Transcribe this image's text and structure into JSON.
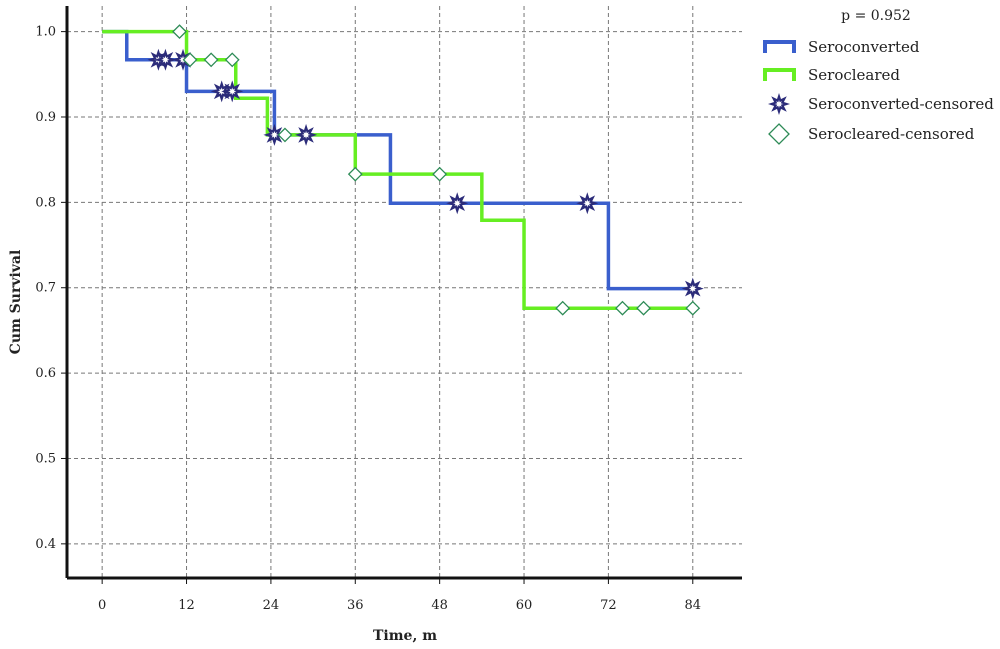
{
  "chart_data": {
    "type": "line",
    "title": "",
    "xlabel": "Time, m",
    "ylabel": "Cum Survival",
    "annotation": "p = 0.952",
    "xlim": [
      -5,
      91
    ],
    "ylim": [
      0.36,
      1.03
    ],
    "x_ticks": [
      0,
      12,
      24,
      36,
      48,
      60,
      72,
      84
    ],
    "y_ticks": [
      0.4,
      0.5,
      0.6,
      0.7,
      0.8,
      0.9,
      1.0
    ],
    "y_tick_labels": [
      "0.4",
      "0.5",
      "0.6",
      "0.7",
      "0.8",
      "0.9",
      "1.0"
    ],
    "grid": true,
    "legend_position": "top-right",
    "series": [
      {
        "name": "Seroconverted",
        "color": "#3a5fcd",
        "step": [
          [
            0,
            1.0
          ],
          [
            3.5,
            0.967
          ],
          [
            12,
            0.93
          ],
          [
            24.5,
            0.879
          ],
          [
            41,
            0.799
          ],
          [
            72,
            0.699
          ],
          [
            84,
            0.699
          ]
        ]
      },
      {
        "name": "Serocleared",
        "color": "#66ee22",
        "step": [
          [
            0,
            1.0
          ],
          [
            12,
            0.967
          ],
          [
            19,
            0.922
          ],
          [
            23.5,
            0.879
          ],
          [
            36,
            0.833
          ],
          [
            54,
            0.779
          ],
          [
            60,
            0.676
          ],
          [
            84,
            0.676
          ]
        ]
      }
    ],
    "censored": [
      {
        "name": "Seroconverted-censored",
        "symbol": "star-icon",
        "color": "#2c2c7a",
        "points": [
          [
            8,
            0.967
          ],
          [
            9,
            0.967
          ],
          [
            11.5,
            0.967
          ],
          [
            17,
            0.93
          ],
          [
            18.5,
            0.93
          ],
          [
            24.5,
            0.879
          ],
          [
            29,
            0.879
          ],
          [
            50.5,
            0.799
          ],
          [
            69,
            0.799
          ],
          [
            84,
            0.699
          ]
        ]
      },
      {
        "name": "Serocleared-censored",
        "symbol": "diamond-icon",
        "color": "#2e8b57",
        "points": [
          [
            11,
            1.0
          ],
          [
            12.5,
            0.967
          ],
          [
            15.5,
            0.967
          ],
          [
            18.5,
            0.967
          ],
          [
            26,
            0.879
          ],
          [
            36,
            0.833
          ],
          [
            48,
            0.833
          ],
          [
            65.5,
            0.676
          ],
          [
            74,
            0.676
          ],
          [
            77,
            0.676
          ],
          [
            84,
            0.676
          ]
        ]
      }
    ]
  }
}
